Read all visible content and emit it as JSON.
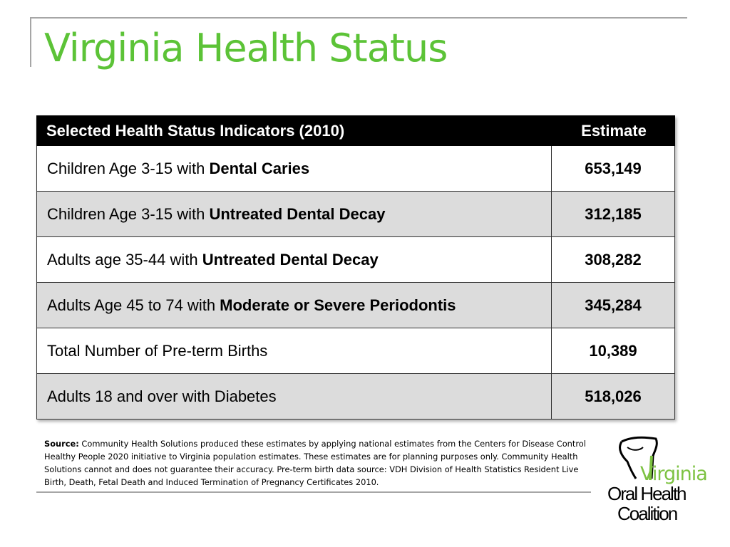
{
  "slide": {
    "title": "Virginia Health Status"
  },
  "table": {
    "headers": [
      "Selected Health Status Indicators (2010)",
      "Estimate"
    ],
    "rows": [
      {
        "prefix": "Children Age 3-15 with ",
        "bold": "Dental Caries",
        "estimate": "653,149"
      },
      {
        "prefix": "Children Age 3-15 with ",
        "bold": "Untreated Dental Decay",
        "estimate": "312,185"
      },
      {
        "prefix": "Adults age 35-44 with ",
        "bold": "Untreated Dental Decay",
        "estimate": "308,282"
      },
      {
        "prefix": "Adults Age 45 to 74 with ",
        "bold": "Moderate or Severe Periodontis",
        "estimate": "345,284"
      },
      {
        "prefix": "Total Number of Pre-term Births",
        "bold": "",
        "estimate": "10,389"
      },
      {
        "prefix": "Adults 18 and over with Diabetes",
        "bold": "",
        "estimate": "518,026"
      }
    ]
  },
  "source": {
    "label": "Source:",
    "text": " Community Health Solutions produced these estimates by applying national estimates from the Centers for Disease Control Healthy People 2020 initiative to Virginia population estimates.  These estimates are for planning purposes only.  Community Health Solutions cannot and does not guarantee their accuracy.  Pre-term birth data source: VDH Division of Health Statistics Resident Live Birth, Death, Fetal Death and Induced Termination of Pregnancy Certificates 2010."
  },
  "logo": {
    "line1": "Virginia",
    "line2": "Oral Health",
    "line3": "Coalition"
  },
  "colors": {
    "title": "#5cc337",
    "logo_green": "#7dc242",
    "alt_row": "#dcdcdc"
  }
}
